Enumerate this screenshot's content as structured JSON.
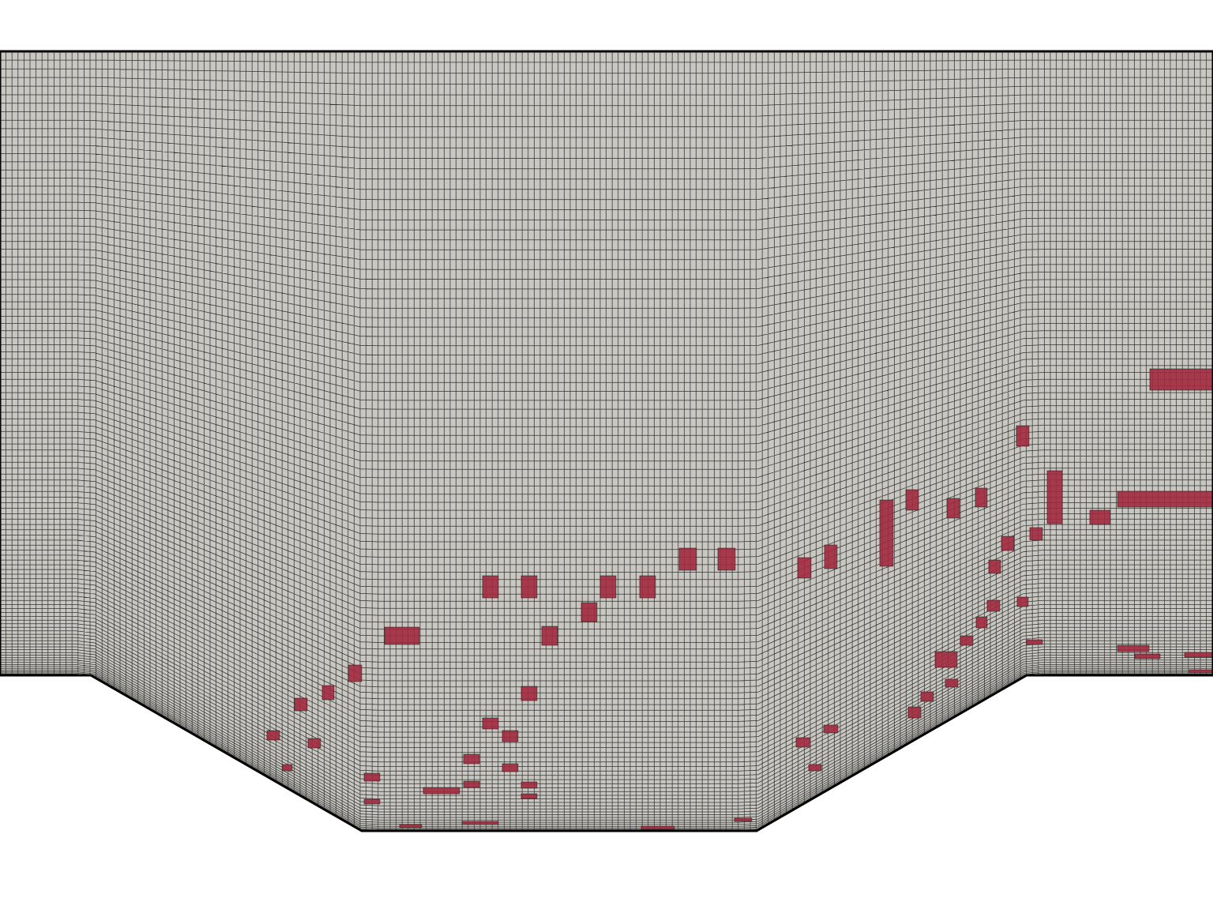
{
  "scene": {
    "background_color": "#ffffff",
    "mesh_fill_color": "#c8c7c1",
    "grid_line_color": "#1a1a1a",
    "flagged_cell_color": "#a02a3e",
    "boundary_color": "#000000"
  }
}
